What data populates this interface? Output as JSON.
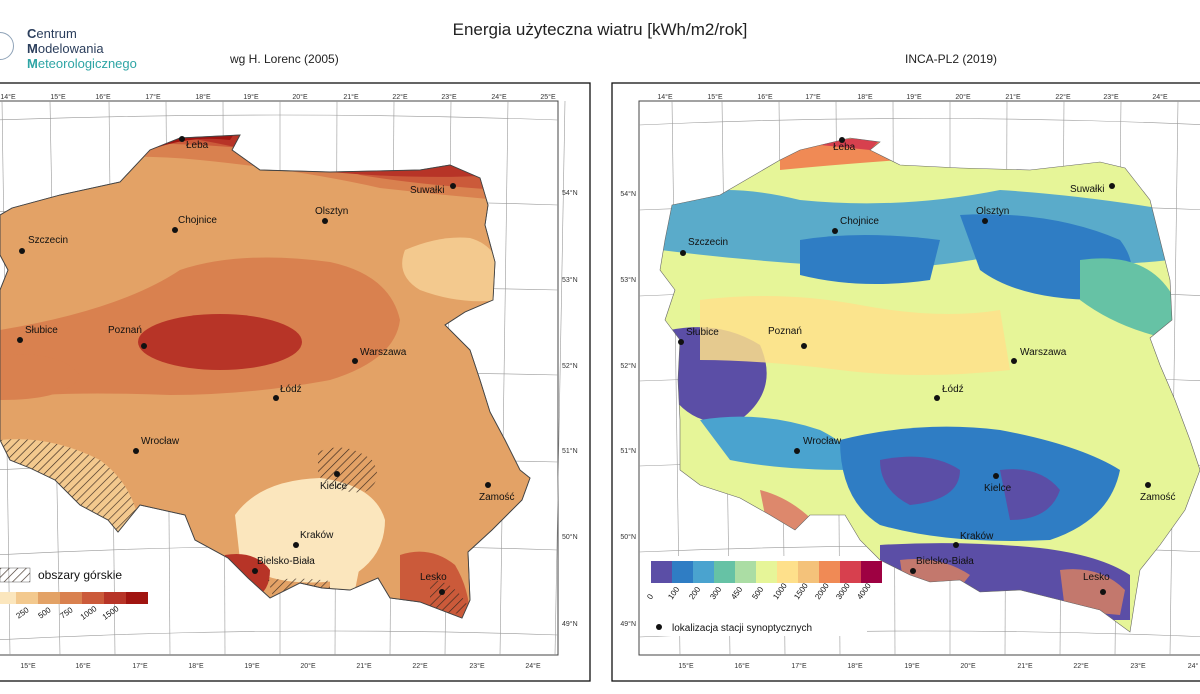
{
  "title": "Energia użyteczna wiatru [kWh/m2/rok]",
  "logo": {
    "line1_initial": "C",
    "line1_rest": "entrum",
    "line2_initial": "M",
    "line2_rest": "odelowania",
    "line3_initial": "M",
    "line3_rest": "eteorologicznego"
  },
  "left_map": {
    "subtitle": "wg H. Lorenc (2005)",
    "top_ticks": [
      "14°E",
      "15°E",
      "16°E",
      "17°E",
      "18°E",
      "19°E",
      "20°E",
      "21°E",
      "22°E",
      "23°E",
      "24°E",
      "25°E"
    ],
    "bottom_ticks": [
      "15°E",
      "16°E",
      "17°E",
      "18°E",
      "19°E",
      "20°E",
      "21°E",
      "22°E",
      "23°E",
      "24°E"
    ],
    "right_ticks": [
      "54°N",
      "53°N",
      "52°N",
      "51°N",
      "50°N",
      "49°N"
    ],
    "cities": [
      "Łeba",
      "Suwałki",
      "Chojnice",
      "Olsztyn",
      "Szczecin",
      "Słubice",
      "Poznań",
      "Warszawa",
      "Łódź",
      "Wrocław",
      "Kielce",
      "Zamość",
      "Kraków",
      "Bielsko-Biała",
      "Lesko"
    ],
    "legend": {
      "hatch_label": "obszary górskie",
      "labels": [
        "250",
        "500",
        "750",
        "1000",
        "1500"
      ],
      "colors": [
        "#fbe6bd",
        "#f3c98e",
        "#e3a266",
        "#d9814f",
        "#cb5a3a",
        "#b73427",
        "#a01410"
      ]
    }
  },
  "right_map": {
    "subtitle": "INCA-PL2 (2019)",
    "top_ticks": [
      "14°E",
      "15°E",
      "16°E",
      "17°E",
      "18°E",
      "19°E",
      "20°E",
      "21°E",
      "22°E",
      "23°E",
      "24°E"
    ],
    "bottom_ticks": [
      "15°E",
      "16°E",
      "17°E",
      "18°E",
      "19°E",
      "20°E",
      "21°E",
      "22°E",
      "23°E",
      "24°"
    ],
    "left_ticks": [
      "54°N",
      "53°N",
      "52°N",
      "51°N",
      "50°N",
      "49°N"
    ],
    "cities": [
      "Łeba",
      "Suwałki",
      "Chojnice",
      "Olsztyn",
      "Szczecin",
      "Słubice",
      "Poznań",
      "Warszawa",
      "Łódź",
      "Wrocław",
      "Kielce",
      "Zamość",
      "Kraków",
      "Bielsko-Biała",
      "Lesko"
    ],
    "legend": {
      "labels": [
        "0",
        "100",
        "200",
        "300",
        "450",
        "500",
        "1000",
        "1500",
        "2000",
        "3000",
        "4000"
      ],
      "colors": [
        "#5b4ea6",
        "#2f7dc4",
        "#4aa3cf",
        "#66c2a5",
        "#abdda4",
        "#e6f598",
        "#fee08b",
        "#f4c27a",
        "#f08a55",
        "#d7404e",
        "#9e0142"
      ],
      "station_label": "lokalizacja stacji synoptycznych"
    }
  }
}
